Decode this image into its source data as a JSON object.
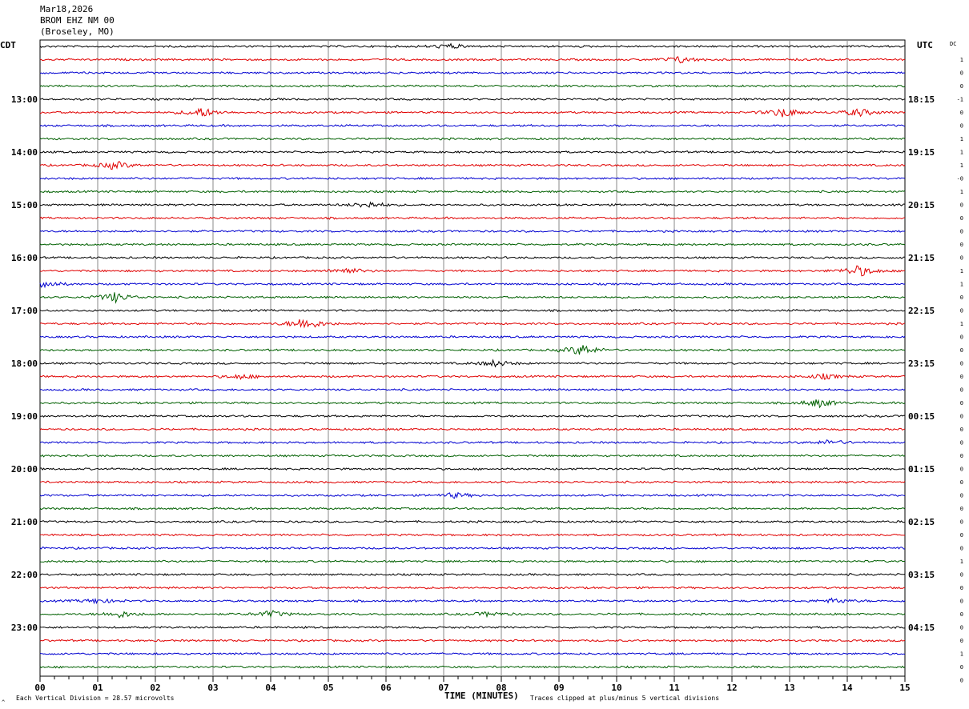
{
  "header": {
    "date": "Mar18,2026",
    "station": "BROM EHZ NM 00",
    "location": "(Broseley, MO)"
  },
  "left_zone": "CDT",
  "right_zone": "UTC",
  "dc_header": "DC",
  "x_axis_title": "TIME (MINUTES)",
  "footer": {
    "scale_note": "Each Vertical Division =   28.57 microvolts",
    "clip_note": "Traces clipped at plus/minus 5 vertical divisions",
    "corner_mark": "^"
  },
  "colors": {
    "trace_cycle": [
      "#000000",
      "#e00000",
      "#0000d0",
      "#006000"
    ],
    "grid": "#888888"
  },
  "chart_data": {
    "type": "line",
    "title": "Mar18,2026 BROM EHZ NM 00 (Broseley, MO)",
    "xlabel": "TIME (MINUTES)",
    "ylabel": "",
    "x_ticks": [
      "00",
      "01",
      "02",
      "03",
      "04",
      "05",
      "06",
      "07",
      "08",
      "09",
      "10",
      "11",
      "12",
      "13",
      "14",
      "15"
    ],
    "xlim": [
      0,
      15
    ],
    "left_time_labels": [
      "13:00",
      "14:00",
      "15:00",
      "16:00",
      "17:00",
      "18:00",
      "19:00",
      "20:00",
      "21:00",
      "22:00",
      "23:00"
    ],
    "right_time_labels": [
      "18:15",
      "19:15",
      "20:15",
      "21:15",
      "22:15",
      "23:15",
      "00:15",
      "01:15",
      "02:15",
      "03:15",
      "04:15"
    ],
    "rows": 48,
    "dc_values": [
      "1",
      "0",
      "0",
      "-1",
      "0",
      "0",
      "1",
      "1",
      "1",
      "-0",
      "1",
      "0",
      "0",
      "0",
      "0",
      "0",
      "1",
      "1",
      "0",
      "0",
      "1",
      "0",
      "0",
      "0",
      "0",
      "0",
      "0",
      "0",
      "0",
      "0",
      "0",
      "0",
      "0",
      "0",
      "0",
      "0",
      "0",
      "0",
      "1",
      "0",
      "0",
      "0",
      "0",
      "0",
      "0",
      "1",
      "0",
      "0"
    ],
    "events": [
      {
        "row": 0,
        "minute": 7.1,
        "amp": 3
      },
      {
        "row": 1,
        "minute": 11.1,
        "amp": 4
      },
      {
        "row": 5,
        "minute": 2.8,
        "amp": 6
      },
      {
        "row": 5,
        "minute": 12.9,
        "amp": 6
      },
      {
        "row": 5,
        "minute": 14.2,
        "amp": 5
      },
      {
        "row": 9,
        "minute": 1.3,
        "amp": 5
      },
      {
        "row": 12,
        "minute": 5.7,
        "amp": 4
      },
      {
        "row": 17,
        "minute": 5.3,
        "amp": 4
      },
      {
        "row": 17,
        "minute": 14.2,
        "amp": 7
      },
      {
        "row": 18,
        "minute": 0.0,
        "amp": 7
      },
      {
        "row": 19,
        "minute": 1.3,
        "amp": 6
      },
      {
        "row": 21,
        "minute": 4.6,
        "amp": 8
      },
      {
        "row": 23,
        "minute": 9.4,
        "amp": 7
      },
      {
        "row": 24,
        "minute": 7.9,
        "amp": 4
      },
      {
        "row": 25,
        "minute": 3.5,
        "amp": 3
      },
      {
        "row": 25,
        "minute": 13.6,
        "amp": 3
      },
      {
        "row": 27,
        "minute": 13.5,
        "amp": 5
      },
      {
        "row": 30,
        "minute": 13.7,
        "amp": 3
      },
      {
        "row": 34,
        "minute": 7.2,
        "amp": 3
      },
      {
        "row": 42,
        "minute": 1.0,
        "amp": 3
      },
      {
        "row": 42,
        "minute": 13.8,
        "amp": 3
      },
      {
        "row": 43,
        "minute": 4.0,
        "amp": 4
      },
      {
        "row": 43,
        "minute": 1.4,
        "amp": 4
      },
      {
        "row": 43,
        "minute": 7.8,
        "amp": 3
      }
    ]
  }
}
